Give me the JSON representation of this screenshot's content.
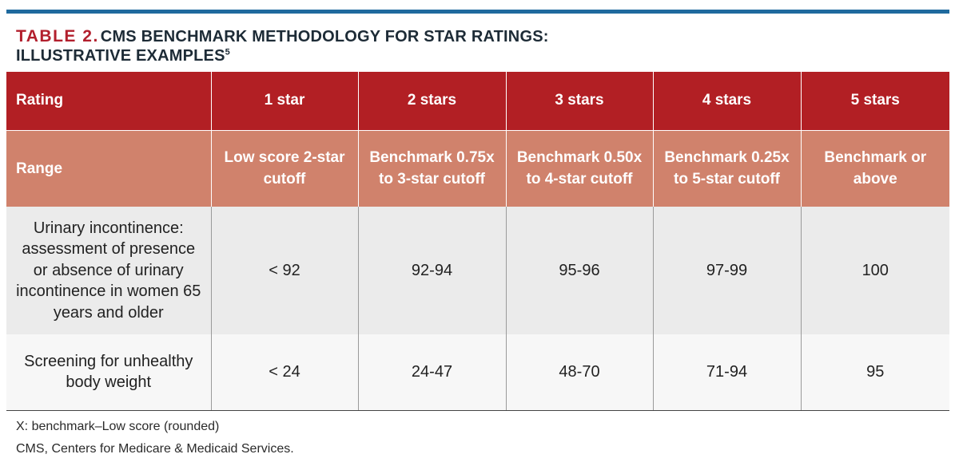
{
  "title": {
    "label": "TABLE 2.",
    "text": "CMS BENCHMARK METHODOLOGY FOR STAR RATINGS:",
    "text2": "ILLUSTRATIVE EXAMPLES",
    "ref": "5"
  },
  "table": {
    "rating_row": [
      "Rating",
      "1 star",
      "2 stars",
      "3 stars",
      "4 stars",
      "5 stars"
    ],
    "range_row": [
      "Range",
      "Low score 2-star cutoff",
      "Benchmark 0.75x to 3-star cutoff",
      "Benchmark 0.50x to 4-star cutoff",
      "Benchmark 0.25x to 5-star cutoff",
      "Benchmark or above"
    ],
    "rows": [
      [
        "Urinary incontinence: assessment of presence or absence of urinary incontinence in women 65 years and older",
        "< 92",
        "92-94",
        "95-96",
        "97-99",
        "100"
      ],
      [
        "Screening for unhealthy body weight",
        "< 24",
        "24-47",
        "48-70",
        "71-94",
        "95"
      ]
    ]
  },
  "footnotes": [
    "X: benchmark–Low score (rounded)",
    "CMS, Centers for Medicare & Medicaid Services."
  ],
  "colors": {
    "accent_rule": "#1f6a9e",
    "header_red": "#b21f24",
    "range_salmon": "#d0826c"
  }
}
